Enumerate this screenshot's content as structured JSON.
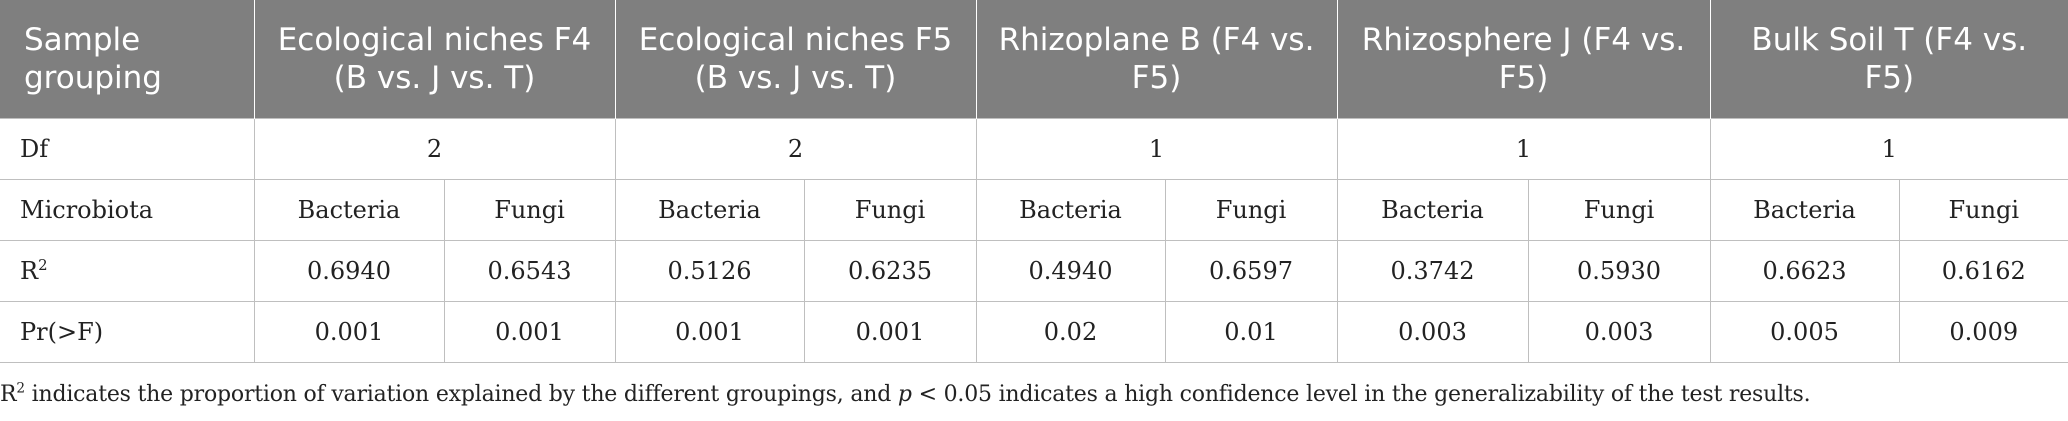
{
  "table": {
    "headers": [
      "Sample grouping",
      "Ecological niches F4 (B vs. J vs. T)",
      "Ecological niches F5 (B vs. J vs. T)",
      "Rhizoplane B (F4 vs. F5)",
      "Rhizosphere J (F4 vs. F5)",
      "Bulk Soil T (F4 vs. F5)"
    ],
    "df_row": {
      "label": "Df",
      "values": [
        "2",
        "2",
        "1",
        "1",
        "1"
      ]
    },
    "microbiota_row": {
      "label": "Microbiota",
      "values": [
        "Bacteria",
        "Fungi",
        "Bacteria",
        "Fungi",
        "Bacteria",
        "Fungi",
        "Bacteria",
        "Fungi",
        "Bacteria",
        "Fungi"
      ]
    },
    "r2_row": {
      "label_base": "R",
      "label_sup": "2",
      "values": [
        "0.6940",
        "0.6543",
        "0.5126",
        "0.6235",
        "0.4940",
        "0.6597",
        "0.3742",
        "0.5930",
        "0.6623",
        "0.6162"
      ]
    },
    "pr_row": {
      "label": "Pr(>F)",
      "values": [
        "0.001",
        "0.001",
        "0.001",
        "0.001",
        "0.02",
        "0.01",
        "0.003",
        "0.003",
        "0.005",
        "0.009"
      ]
    }
  },
  "footnote": {
    "r": "R",
    "r_sup": "2",
    "part1": " indicates the proportion of variation explained by the different groupings, and ",
    "p": "p",
    "part2": " < 0.05 indicates a high confidence level in the generalizability of the test results."
  }
}
